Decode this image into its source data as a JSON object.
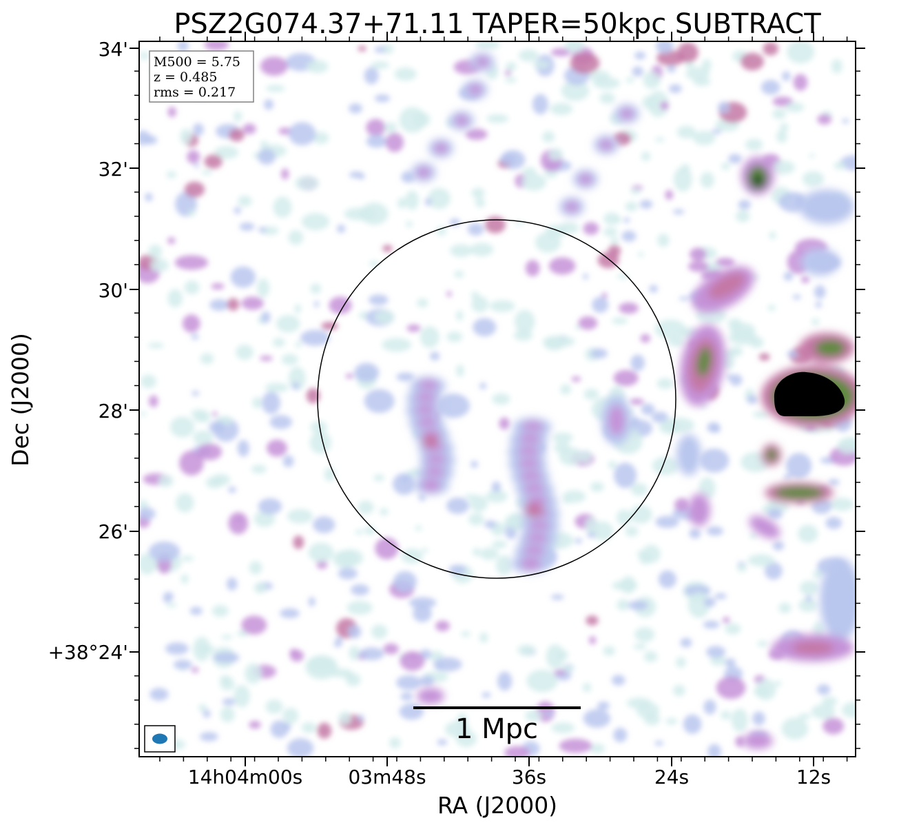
{
  "chart_data": {
    "type": "heatmap",
    "title": "PSZ2G074.37+71.11 TAPER=50kpc SUBTRACT",
    "xlabel": "RA (J2000)",
    "ylabel": "Dec (J2000)",
    "x_ticks": [
      "14h04m00s",
      "03m48s",
      "36s",
      "24s",
      "12s"
    ],
    "y_ticks": [
      "+38°24'",
      "26'",
      "28'",
      "30'",
      "32'",
      "34'"
    ],
    "info_box": {
      "m500": "M500 = 5.75",
      "z": "z = 0.485",
      "rms": "rms = 0.217"
    },
    "scale_bar_label": "1 Mpc",
    "colormap": "cubehelix (light cyan → lavender → pink → green → black)",
    "colors": {
      "low": "#d4ecec",
      "lowmid": "#b9c6ee",
      "mid": "#c592d8",
      "midhigh": "#c478a6",
      "high": "#5f8a3c",
      "peak": "#1a4a2a",
      "beam": "#1f77b4"
    }
  }
}
